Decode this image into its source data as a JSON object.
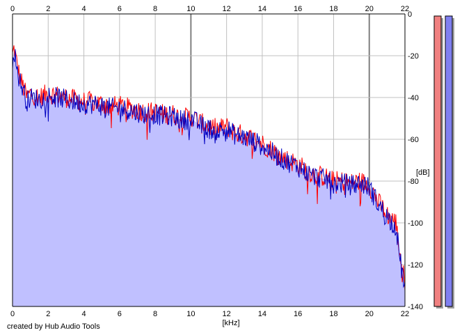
{
  "chart_data": {
    "type": "area",
    "xlabel": "[kHz]",
    "ylabel": "[dB]",
    "xlim": [
      0,
      22
    ],
    "ylim": [
      -140,
      0
    ],
    "x_ticks": [
      0,
      2,
      4,
      6,
      8,
      10,
      12,
      14,
      16,
      18,
      20,
      22
    ],
    "y_ticks": [
      0,
      -20,
      -40,
      -60,
      -80,
      -100,
      -120,
      -140
    ],
    "x_tick_labels": [
      "0",
      "2",
      "4",
      "6",
      "8",
      "10",
      "12",
      "14",
      "16",
      "18",
      "20",
      "22"
    ],
    "y_tick_labels": [
      "0",
      "-20",
      "-40",
      "-60",
      "-80",
      "-100",
      "-120",
      "-140"
    ],
    "grid": true,
    "colors": {
      "fill": "#c0c0ff",
      "series_left": "#ff0000",
      "series_right": "#0000c0",
      "meter_left": "#f08080",
      "meter_right": "#8080f0",
      "grid": "#c0c0c0",
      "grid_major": "#808080"
    },
    "series": [
      {
        "channel": "left",
        "x": [
          0,
          0.1,
          0.2,
          0.4,
          0.6,
          0.8,
          1,
          1.5,
          2,
          2.5,
          3,
          3.5,
          4,
          4.5,
          5,
          5.5,
          6,
          6.5,
          7,
          7.5,
          8,
          8.5,
          9,
          9.5,
          10,
          10.5,
          11,
          11.5,
          12,
          12.5,
          13,
          13.5,
          14,
          14.5,
          15,
          15.5,
          16,
          16.5,
          17,
          17.5,
          18,
          18.5,
          19,
          19.5,
          20,
          20.5,
          21,
          21.5,
          21.8,
          22
        ],
        "y": [
          -20,
          -16,
          -22,
          -30,
          -35,
          -40,
          -38,
          -40,
          -38,
          -39,
          -40,
          -41,
          -42,
          -42,
          -43,
          -44,
          -44,
          -45,
          -46,
          -47,
          -47,
          -48,
          -48,
          -50,
          -49,
          -52,
          -54,
          -55,
          -54,
          -57,
          -58,
          -60,
          -62,
          -65,
          -68,
          -70,
          -72,
          -75,
          -77,
          -78,
          -80,
          -80,
          -81,
          -80,
          -82,
          -90,
          -96,
          -100,
          -120,
          -128
        ]
      },
      {
        "channel": "right",
        "x": [
          0,
          0.1,
          0.2,
          0.4,
          0.6,
          0.8,
          1,
          1.5,
          2,
          2.5,
          3,
          3.5,
          4,
          4.5,
          5,
          5.5,
          6,
          6.5,
          7,
          7.5,
          8,
          8.5,
          9,
          9.5,
          10,
          10.5,
          11,
          11.5,
          12,
          12.5,
          13,
          13.5,
          14,
          14.5,
          15,
          15.5,
          16,
          16.5,
          17,
          17.5,
          18,
          18.5,
          19,
          19.5,
          20,
          20.5,
          21,
          21.5,
          21.8,
          22
        ],
        "y": [
          -22,
          -17,
          -24,
          -32,
          -36,
          -42,
          -40,
          -41,
          -39,
          -40,
          -41,
          -42,
          -43,
          -43,
          -44,
          -45,
          -45,
          -46,
          -47,
          -48,
          -48,
          -49,
          -49,
          -51,
          -50,
          -53,
          -55,
          -56,
          -55,
          -58,
          -59,
          -61,
          -63,
          -66,
          -69,
          -71,
          -73,
          -76,
          -78,
          -79,
          -81,
          -81,
          -82,
          -81,
          -83,
          -91,
          -97,
          -102,
          -122,
          -130
        ]
      }
    ],
    "meters": [
      {
        "channel": "left",
        "value": -1
      },
      {
        "channel": "right",
        "value": -1
      }
    ]
  },
  "footer": {
    "credit": "created by Hub Audio Tools"
  }
}
